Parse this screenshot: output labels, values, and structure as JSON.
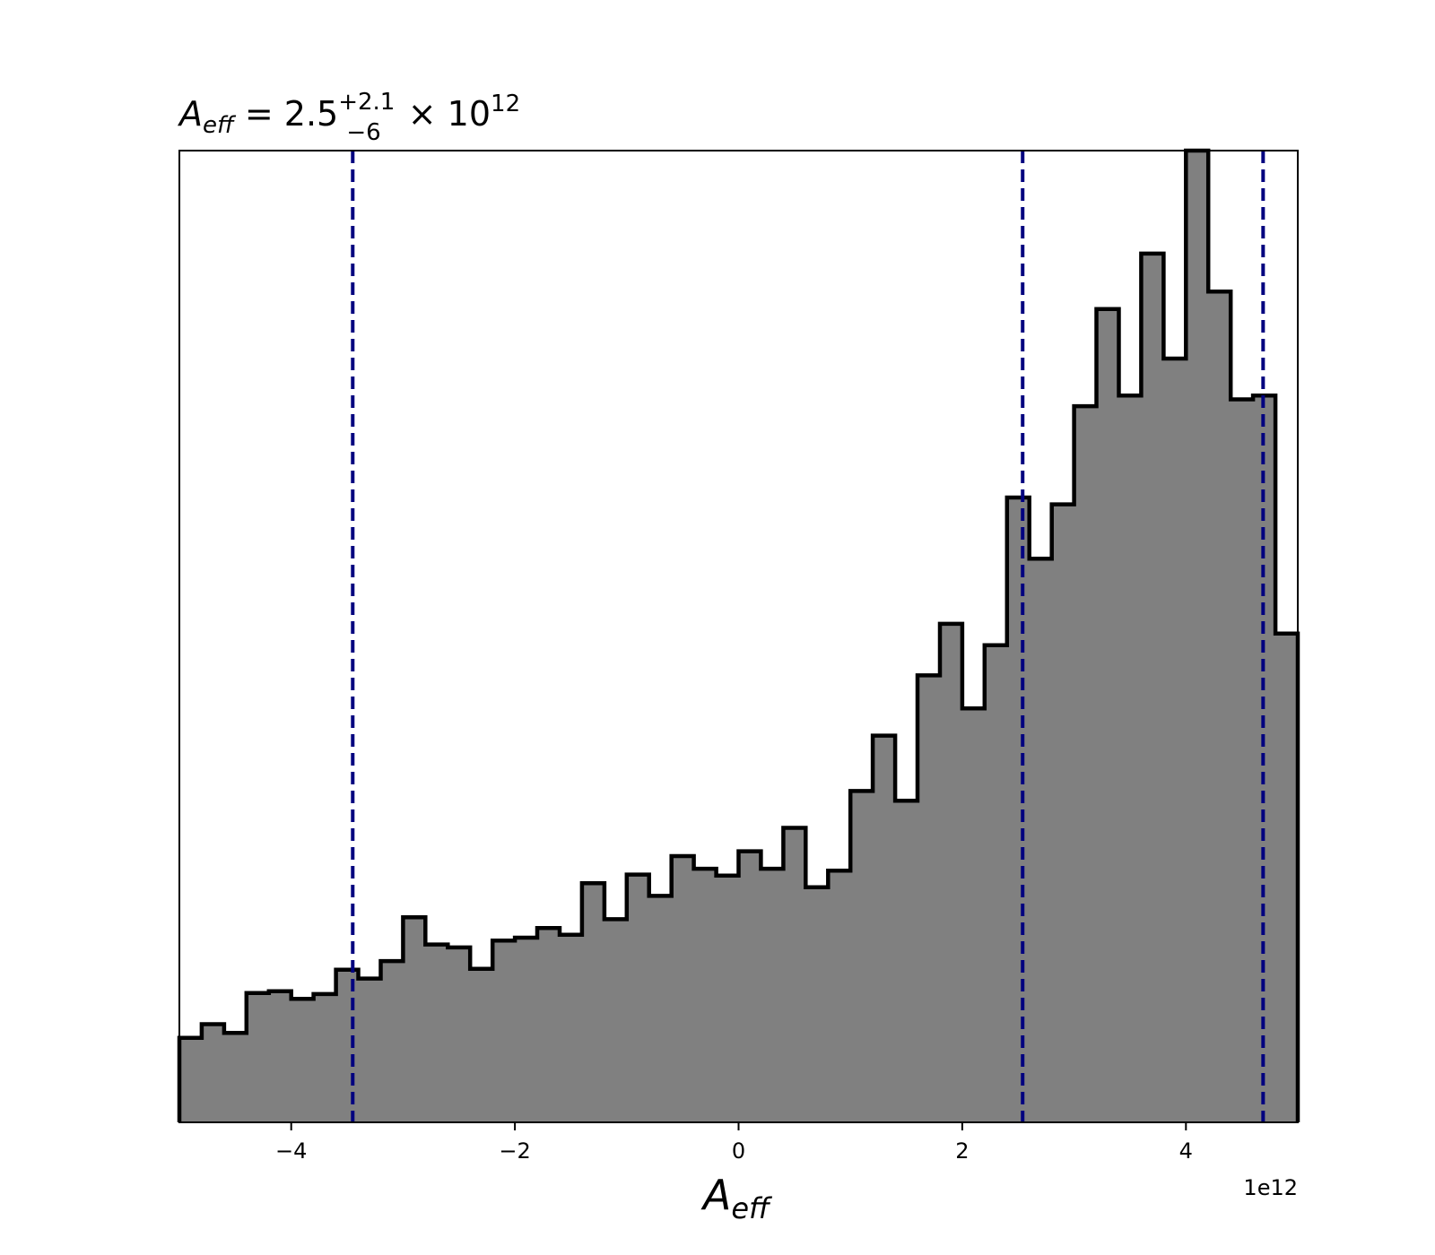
{
  "chart_data": {
    "type": "histogram",
    "title": {
      "symbol": "A",
      "symbol_sub": "eff",
      "equals": " = 2.5",
      "sup": "+2.1",
      "sub": "−6",
      "tail": " × 10",
      "exp": "12"
    },
    "xlabel": {
      "symbol": "A",
      "sub": "eff"
    },
    "ylabel": "",
    "x_offset_label": "1e12",
    "xlim": [
      -5.0,
      5.0
    ],
    "ylim": [
      0,
      1.0
    ],
    "xticks": [
      -4,
      -2,
      0,
      2,
      4
    ],
    "xtick_labels": [
      "−4",
      "−2",
      "0",
      "2",
      "4"
    ],
    "yticks_visible": false,
    "grid": false,
    "bin_edges": [
      -5.0,
      -4.8,
      -4.6,
      -4.4,
      -4.2,
      -4.0,
      -3.8,
      -3.6,
      -3.4,
      -3.2,
      -3.0,
      -2.8,
      -2.6,
      -2.4,
      -2.2,
      -2.0,
      -1.8,
      -1.6,
      -1.4,
      -1.2,
      -1.0,
      -0.8,
      -0.6,
      -0.4,
      -0.2,
      0.0,
      0.2,
      0.4,
      0.6,
      0.8,
      1.0,
      1.2,
      1.4,
      1.6,
      1.8,
      2.0,
      2.2,
      2.4,
      2.6,
      2.8,
      3.0,
      3.2,
      3.4,
      3.6,
      3.8,
      4.0,
      4.2,
      4.4,
      4.6,
      4.8,
      5.0
    ],
    "counts": [
      0.087,
      0.101,
      0.092,
      0.133,
      0.135,
      0.127,
      0.132,
      0.157,
      0.148,
      0.166,
      0.211,
      0.183,
      0.18,
      0.158,
      0.187,
      0.19,
      0.2,
      0.193,
      0.246,
      0.209,
      0.255,
      0.233,
      0.274,
      0.261,
      0.254,
      0.279,
      0.261,
      0.303,
      0.242,
      0.259,
      0.341,
      0.398,
      0.331,
      0.46,
      0.513,
      0.426,
      0.491,
      0.643,
      0.58,
      0.636,
      0.737,
      0.837,
      0.748,
      0.894,
      0.786,
      1.0,
      0.855,
      0.744,
      0.748,
      0.503
    ],
    "vlines": [
      -3.45,
      2.54,
      4.69
    ],
    "colors": {
      "fill": "#808080",
      "edge": "#000000",
      "vline": "#00007f",
      "axes": "#000000"
    }
  }
}
